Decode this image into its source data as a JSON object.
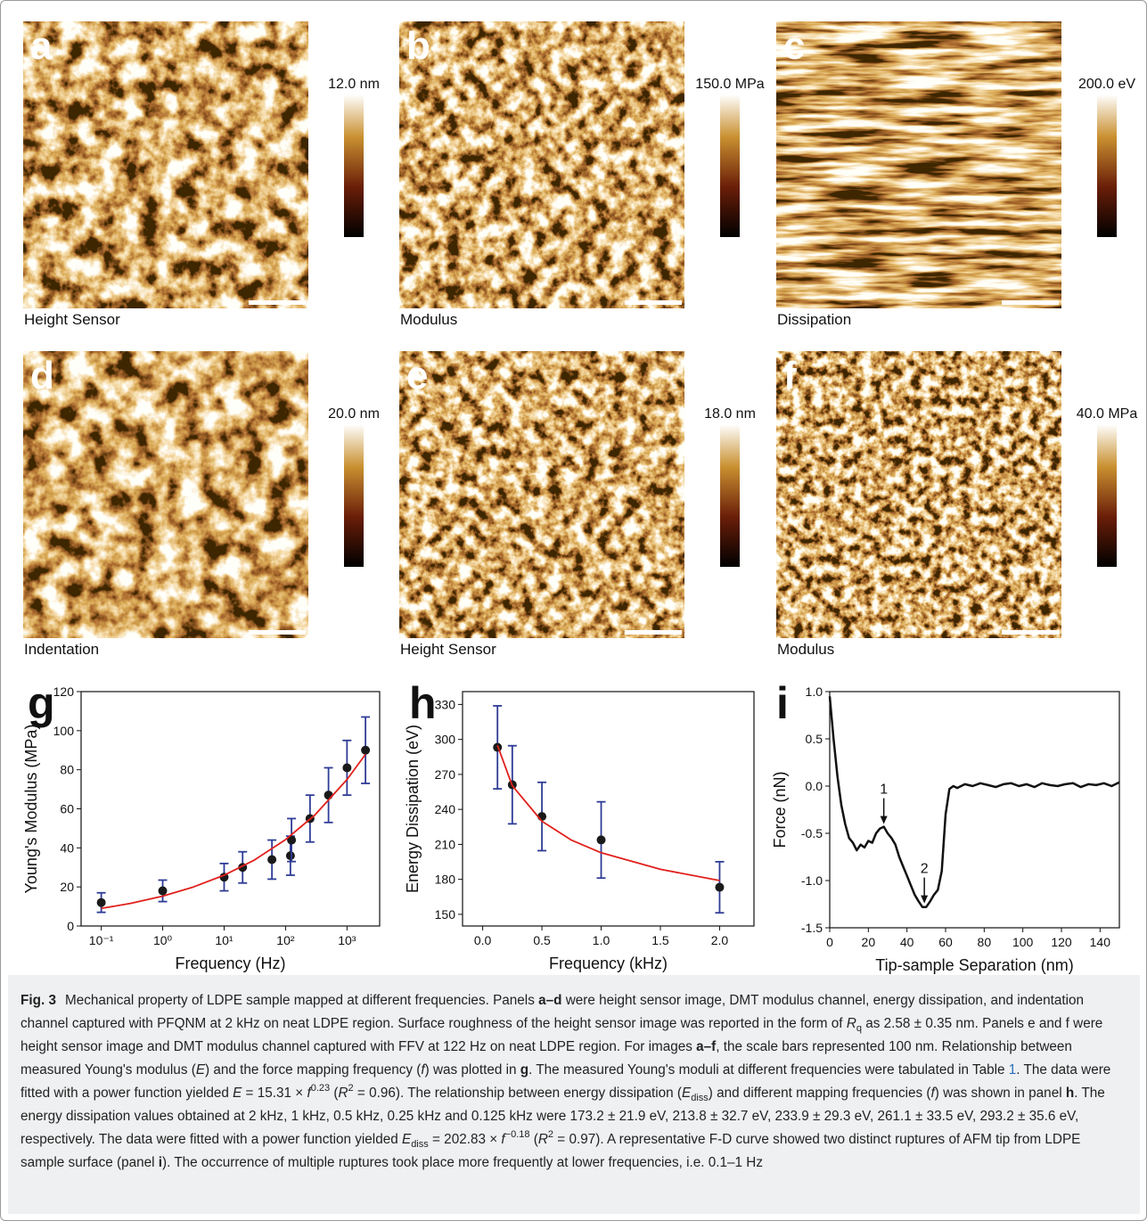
{
  "panels": [
    {
      "letter": "a",
      "channel": "Height Sensor",
      "scale_max": "12.0 nm"
    },
    {
      "letter": "b",
      "channel": "Modulus",
      "scale_max": "150.0 MPa"
    },
    {
      "letter": "c",
      "channel": "Dissipation",
      "scale_max": "200.0 eV"
    },
    {
      "letter": "d",
      "channel": "Indentation",
      "scale_max": "20.0 nm"
    },
    {
      "letter": "e",
      "channel": "Height Sensor",
      "scale_max": "18.0 nm"
    },
    {
      "letter": "f",
      "channel": "Modulus",
      "scale_max": "40.0 MPa"
    }
  ],
  "chart_data": [
    {
      "type": "scatter",
      "panel": "g",
      "x_label": "Frequency (Hz)",
      "y_label": "Young's Modulus (MPa)",
      "x_log": true,
      "xlim": [
        0.047,
        3400
      ],
      "ylim": [
        0,
        120
      ],
      "xticks": [
        {
          "value": 0.1,
          "label": "10⁻¹"
        },
        {
          "value": 1,
          "label": "10⁰"
        },
        {
          "value": 10,
          "label": "10¹"
        },
        {
          "value": 100,
          "label": "10²"
        },
        {
          "value": 1000,
          "label": "10³"
        }
      ],
      "yticks": [
        0,
        20,
        40,
        60,
        80,
        100,
        120
      ],
      "series": [
        {
          "style": "points",
          "color": "#1a1a1a",
          "error_color": "#2e3c96",
          "x": [
            0.1,
            1,
            10,
            20,
            60,
            120,
            125,
            250,
            500,
            1000,
            2000
          ],
          "values": [
            12,
            18,
            25,
            30,
            34,
            36,
            44,
            55,
            67,
            81,
            90
          ],
          "errors": [
            5,
            5.5,
            7,
            8,
            10,
            10,
            11,
            12,
            14,
            14,
            17
          ]
        },
        {
          "style": "line",
          "color": "#e0201c",
          "x": [
            0.1,
            0.3,
            1,
            3,
            10,
            30,
            100,
            300,
            1000,
            2000
          ],
          "values": [
            9.0,
            11.6,
            15.3,
            19.7,
            26.0,
            33.5,
            44.2,
            56.8,
            75.0,
            87.9
          ]
        }
      ]
    },
    {
      "type": "scatter",
      "panel": "h",
      "x_label": "Frequency (kHz)",
      "y_label": "Energy Dissipation (eV)",
      "x_log": false,
      "xlim": [
        -0.17,
        2.29
      ],
      "ylim": [
        140,
        341
      ],
      "xticks": [
        {
          "value": 0,
          "label": "0.0"
        },
        0.5,
        {
          "value": 1,
          "label": "1.0"
        },
        1.5,
        {
          "value": 2,
          "label": "2.0"
        }
      ],
      "yticks": [
        150,
        180,
        210,
        240,
        270,
        300,
        330
      ],
      "series": [
        {
          "style": "points",
          "color": "#1a1a1a",
          "error_color": "#2e3c96",
          "x": [
            0.125,
            0.25,
            0.5,
            1,
            2
          ],
          "values": [
            293.2,
            261.1,
            233.9,
            213.8,
            173.2
          ],
          "errors": [
            35.6,
            33.5,
            29.3,
            32.7,
            21.9
          ]
        },
        {
          "style": "line",
          "color": "#e0201c",
          "x": [
            0.125,
            0.25,
            0.5,
            0.75,
            1,
            1.5,
            2
          ],
          "values": [
            294.9,
            260.3,
            229.8,
            213.6,
            202.8,
            188.6,
            179.0
          ]
        }
      ]
    },
    {
      "type": "line",
      "panel": "i",
      "x_label": "Tip-sample Separation (nm)",
      "y_label": "Force (nN)",
      "x_log": false,
      "xlim": [
        0,
        150
      ],
      "ylim": [
        -1.5,
        1.0
      ],
      "xticks": [
        0,
        20,
        40,
        60,
        80,
        100,
        120,
        140
      ],
      "yticks": [
        -1.5,
        {
          "value": -1,
          "label": "-1.0"
        },
        -0.5,
        {
          "value": 0,
          "label": "0.0"
        },
        0.5,
        {
          "value": 1,
          "label": "1.0"
        }
      ],
      "annotations": [
        {
          "text": "1",
          "x": 28,
          "y": -0.43
        },
        {
          "text": "2",
          "x": 49,
          "y": -1.27
        }
      ],
      "series": [
        {
          "style": "line",
          "color": "#111111",
          "x": [
            0,
            2,
            4,
            6,
            8,
            10,
            12,
            14,
            16,
            18,
            20,
            22,
            24,
            26,
            28,
            30,
            32,
            34,
            36,
            38,
            40,
            42,
            44,
            46,
            48,
            50,
            52,
            54,
            56,
            58,
            60,
            62,
            64,
            66,
            70,
            74,
            78,
            82,
            86,
            90,
            94,
            98,
            102,
            106,
            110,
            114,
            118,
            122,
            126,
            130,
            134,
            138,
            142,
            146,
            150
          ],
          "values": [
            0.95,
            0.5,
            0.1,
            -0.2,
            -0.4,
            -0.55,
            -0.6,
            -0.68,
            -0.62,
            -0.65,
            -0.58,
            -0.6,
            -0.5,
            -0.45,
            -0.43,
            -0.5,
            -0.55,
            -0.62,
            -0.75,
            -0.85,
            -0.95,
            -1.05,
            -1.15,
            -1.22,
            -1.28,
            -1.28,
            -1.22,
            -1.15,
            -1.1,
            -0.9,
            -0.3,
            -0.03,
            0,
            -0.02,
            0.02,
            0,
            0.03,
            0.01,
            -0.01,
            0.02,
            0.03,
            0,
            0.02,
            -0.01,
            0.03,
            0.01,
            0,
            0.02,
            0.03,
            -0.01,
            0.02,
            0.01,
            0.03,
            0,
            0.04
          ]
        }
      ]
    }
  ],
  "caption": {
    "label": "Fig. 3",
    "runs": [
      {
        "text": "Mechanical property of LDPE sample mapped at different frequencies. Panels ",
        "style": "n"
      },
      {
        "text": "a–d",
        "style": "b"
      },
      {
        "text": " were height sensor image, DMT modulus channel, energy dissipation, and indentation channel captured with PFQNM at 2 kHz on neat LDPE region. Surface roughness of the height sensor image was reported in the form of ",
        "style": "n"
      },
      {
        "text": "R",
        "style": "i"
      },
      {
        "text": "q",
        "style": "sub"
      },
      {
        "text": " as 2.58 ± 0.35 nm. Panels e and f were height sensor image and DMT modulus channel captured with FFV at 122 Hz on neat LDPE region. For images ",
        "style": "n"
      },
      {
        "text": "a–f",
        "style": "b"
      },
      {
        "text": ", the scale bars represented 100 nm. Relationship between measured Young's modulus (",
        "style": "n"
      },
      {
        "text": "E",
        "style": "i"
      },
      {
        "text": ") and the force mapping frequency (",
        "style": "n"
      },
      {
        "text": "f",
        "style": "i"
      },
      {
        "text": ") was plotted in ",
        "style": "n"
      },
      {
        "text": "g",
        "style": "b"
      },
      {
        "text": ". The measured Young's moduli at different frequencies were tabulated in Table ",
        "style": "n"
      },
      {
        "text": "1",
        "style": "link"
      },
      {
        "text": ". The data were fitted with a power function yielded ",
        "style": "n"
      },
      {
        "text": "E",
        "style": "i"
      },
      {
        "text": " = 15.31 × ",
        "style": "n"
      },
      {
        "text": "f",
        "style": "i"
      },
      {
        "text": "0.23",
        "style": "sup"
      },
      {
        "text": " (",
        "style": "n"
      },
      {
        "text": "R",
        "style": "i"
      },
      {
        "text": "2",
        "style": "sup"
      },
      {
        "text": " = 0.96). The relationship between energy dissipation (",
        "style": "n"
      },
      {
        "text": "E",
        "style": "i"
      },
      {
        "text": "diss",
        "style": "sub"
      },
      {
        "text": ") and different mapping frequencies (",
        "style": "n"
      },
      {
        "text": "f",
        "style": "i"
      },
      {
        "text": ") was shown in panel ",
        "style": "n"
      },
      {
        "text": "h",
        "style": "b"
      },
      {
        "text": ". The energy dissipation values obtained at 2 kHz, 1 kHz, 0.5 kHz, 0.25 kHz and 0.125 kHz were 173.2 ± 21.9 eV, 213.8 ± 32.7 eV, 233.9 ± 29.3 eV, 261.1 ± 33.5 eV, 293.2 ± 35.6 eV, respectively. The data were fitted with a power function yielded ",
        "style": "n"
      },
      {
        "text": "E",
        "style": "i"
      },
      {
        "text": "diss",
        "style": "sub"
      },
      {
        "text": " = 202.83 × ",
        "style": "n"
      },
      {
        "text": "f",
        "style": "i"
      },
      {
        "text": "−0.18",
        "style": "sup"
      },
      {
        "text": " (",
        "style": "n"
      },
      {
        "text": "R",
        "style": "i"
      },
      {
        "text": "2",
        "style": "sup"
      },
      {
        "text": " = 0.97). A representative F-D curve showed two distinct ruptures of AFM tip from LDPE sample surface (panel ",
        "style": "n"
      },
      {
        "text": "i",
        "style": "b"
      },
      {
        "text": "). The occurrence of multiple ruptures took place more frequently at lower frequencies, i.e. 0.1–1 Hz",
        "style": "n"
      }
    ]
  }
}
